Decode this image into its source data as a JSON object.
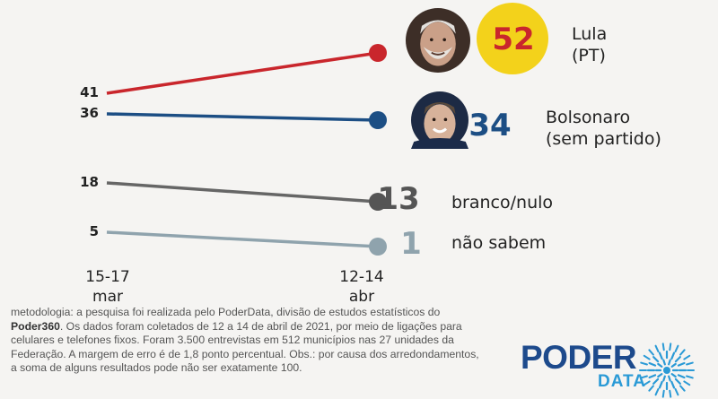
{
  "chart_data": {
    "type": "line",
    "x": [
      "15-17 mar",
      "12-14 abr"
    ],
    "x_ticks": [
      {
        "line1": "15-17",
        "line2": "mar"
      },
      {
        "line1": "12-14",
        "line2": "abr"
      }
    ],
    "series": [
      {
        "name": "Lula",
        "name_line2": "(PT)",
        "values": [
          41,
          52
        ],
        "color": "#c9262c",
        "end_color": "#c9262c",
        "start_label": "41",
        "end_label": "52",
        "badge": "yellow-circle",
        "photo": true
      },
      {
        "name": "Bolsonaro",
        "name_line2": "(sem partido)",
        "values": [
          36,
          34
        ],
        "color": "#1c4e84",
        "end_color": "#1c4e84",
        "start_label": "36",
        "end_label": "34",
        "photo": true
      },
      {
        "name": "branco/nulo",
        "values": [
          18,
          13
        ],
        "color": "#666666",
        "end_color": "#555555",
        "start_label": "18",
        "end_label": "13"
      },
      {
        "name": "não sabem",
        "values": [
          5,
          1
        ],
        "color": "#8fa3ad",
        "end_color": "#8fa3ad",
        "start_label": "5",
        "end_label": "1"
      }
    ],
    "colors": {
      "badge": "#f3d21b"
    }
  },
  "footnote": {
    "prefix": "metodologia: a pesquisa foi realizada pelo PoderData, divisão de estudos estatísticos do ",
    "brand": "Poder360",
    "suffix": ". Os dados foram coletados de 12 a 14 de abril de 2021, por meio de ligações para celulares e telefones fixos. Foram 3.500 entrevistas em 512 municípios nas 27 unidades da Federação. A margem de erro é de 1,8 ponto percentual. Obs.: por causa dos arredondamentos, a soma de alguns resultados pode não ser exatamente 100."
  },
  "logo": {
    "word1": "PODER",
    "word2": "DATA",
    "icon": "sunburst-icon",
    "colors": {
      "primary": "#1d4a8c",
      "secondary": "#2a9ad6"
    }
  }
}
